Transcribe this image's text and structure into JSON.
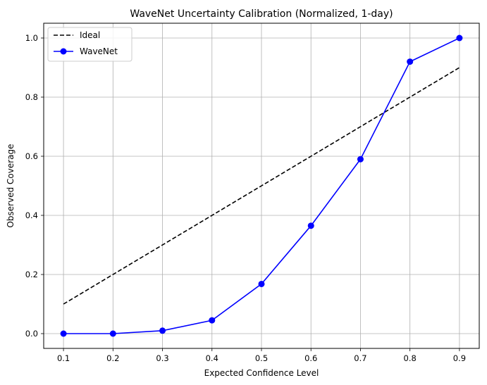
{
  "chart_data": {
    "type": "line",
    "title": "WaveNet Uncertainty Calibration (Normalized, 1-day)",
    "xlabel": "Expected Confidence Level",
    "ylabel": "Observed Coverage",
    "xlim": [
      0.06,
      0.94
    ],
    "ylim": [
      -0.05,
      1.05
    ],
    "xticks": [
      0.1,
      0.2,
      0.3,
      0.4,
      0.5,
      0.6,
      0.7,
      0.8,
      0.9
    ],
    "xtick_labels": [
      "0.1",
      "0.2",
      "0.3",
      "0.4",
      "0.5",
      "0.6",
      "0.7",
      "0.8",
      "0.9"
    ],
    "yticks": [
      0.0,
      0.2,
      0.4,
      0.6,
      0.8,
      1.0
    ],
    "ytick_labels": [
      "0.0",
      "0.2",
      "0.4",
      "0.6",
      "0.8",
      "1.0"
    ],
    "grid": true,
    "legend_position": "top-left",
    "x": [
      0.1,
      0.2,
      0.3,
      0.4,
      0.5,
      0.6,
      0.7,
      0.8,
      0.9
    ],
    "series": [
      {
        "name": "Ideal",
        "values": [
          0.1,
          0.2,
          0.3,
          0.4,
          0.5,
          0.6,
          0.7,
          0.8,
          0.9
        ],
        "color": "#000000",
        "style": "dashed",
        "marker": "none"
      },
      {
        "name": "WaveNet",
        "values": [
          0.0,
          0.0,
          0.01,
          0.045,
          0.168,
          0.365,
          0.59,
          0.92,
          1.0
        ],
        "color": "#0000ff",
        "style": "solid",
        "marker": "circle"
      }
    ]
  }
}
